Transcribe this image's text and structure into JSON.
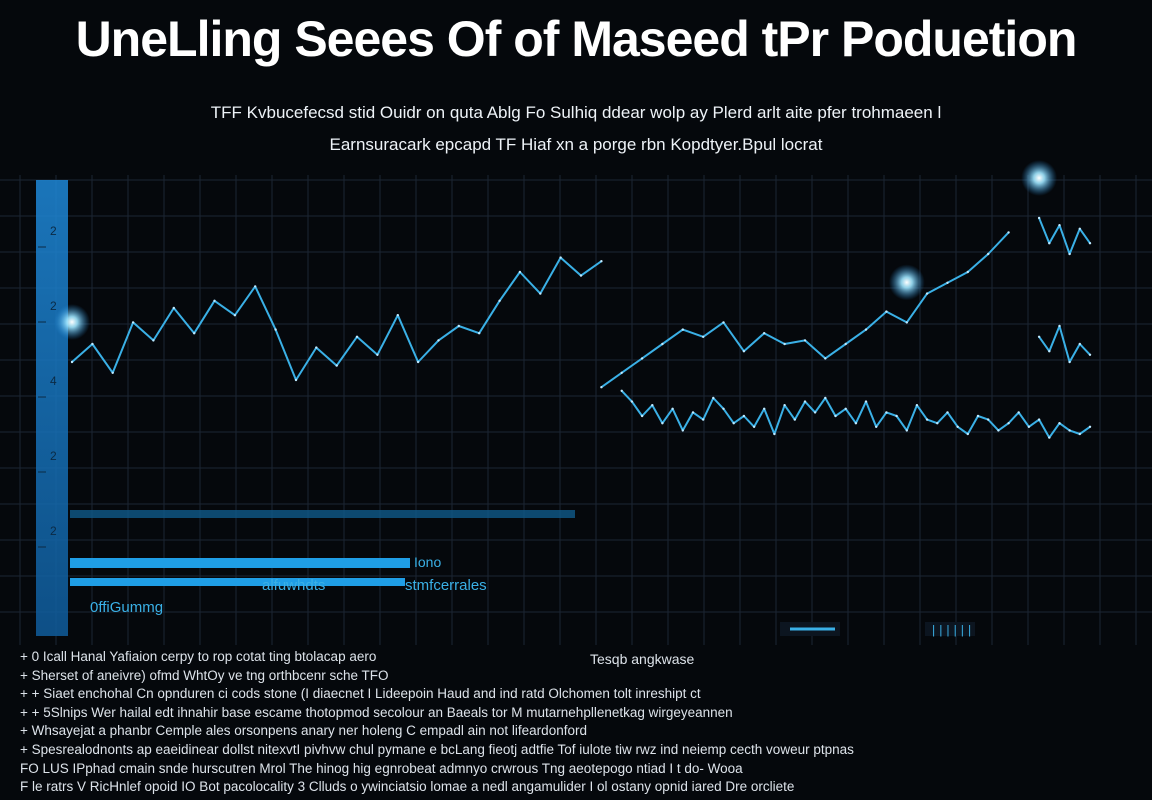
{
  "title": "UneLling Seees Of of Maseed tPr Poduetion",
  "subtitle": [
    "TFF Kvbucefecsd stid Ouidr on quta Ablg Fo Sulhiq ddear wolp ay Plerd arlt aite pfer trohmaeen l",
    "Earnsuracark epcapd TF Hiaf xn a porge rbn Kopdtyer.Bpul locrat"
  ],
  "colors": {
    "background": "#05080c",
    "grid": "#1b2633",
    "line": "#3ab0e6",
    "accent": "#1e88d8",
    "glow": "#9fe6ff"
  },
  "chart_data": {
    "type": "line",
    "title": "UneLling Seees Of of Maseed tPr Poduetion",
    "xlabel": "",
    "ylabel": "",
    "xlim": [
      0,
      100
    ],
    "ylim": [
      0,
      100
    ],
    "grid": true,
    "y_ticks": [
      "2",
      "2",
      "4",
      "2",
      "2"
    ],
    "series": [
      {
        "x": [
          0,
          2,
          4,
          6,
          8,
          10,
          12,
          14,
          16,
          18,
          20,
          22,
          24,
          26,
          28,
          30,
          32,
          34,
          36,
          38,
          40,
          42,
          44,
          46,
          48,
          50,
          52
        ],
        "y": [
          55,
          60,
          52,
          66,
          61,
          70,
          63,
          72,
          68,
          76,
          64,
          50,
          59,
          54,
          62,
          57,
          68,
          55,
          61,
          65,
          63,
          72,
          80,
          74,
          84,
          79,
          83
        ]
      },
      {
        "x": [
          54,
          55,
          56,
          57,
          58,
          59,
          60,
          61,
          62,
          63,
          64,
          65,
          66,
          67,
          68,
          69,
          70,
          71,
          72,
          73,
          74,
          75,
          76,
          77,
          78,
          79,
          80,
          81,
          82,
          83,
          84,
          85,
          86,
          87,
          88,
          89,
          90,
          91,
          92,
          93,
          94,
          95,
          96,
          97,
          98,
          99,
          100
        ],
        "y": [
          47,
          44,
          40,
          43,
          38,
          42,
          36,
          41,
          39,
          45,
          42,
          38,
          40,
          37,
          42,
          35,
          43,
          39,
          44,
          41,
          45,
          40,
          42,
          38,
          44,
          37,
          41,
          40,
          36,
          43,
          39,
          38,
          41,
          37,
          35,
          40,
          39,
          36,
          38,
          41,
          37,
          39,
          34,
          38,
          36,
          35,
          37
        ]
      },
      {
        "x": [
          52,
          54,
          56,
          58,
          60,
          62,
          64,
          66,
          68,
          70,
          72,
          74,
          76,
          78,
          80,
          82,
          84,
          86,
          88,
          90,
          92
        ],
        "y": [
          48,
          52,
          56,
          60,
          64,
          62,
          66,
          58,
          63,
          60,
          61,
          56,
          60,
          64,
          69,
          66,
          74,
          77,
          80,
          85,
          91
        ]
      },
      {
        "x": [
          95,
          96,
          97,
          98,
          99,
          100
        ],
        "y": [
          95,
          88,
          93,
          85,
          92,
          88
        ]
      },
      {
        "x": [
          95,
          96,
          97,
          98,
          99,
          100
        ],
        "y": [
          62,
          58,
          65,
          55,
          60,
          57
        ]
      }
    ],
    "legend": [
      "Iono",
      "alfuwhdts",
      "stmfcerrales",
      "0ffiGummg",
      "Tesqb angkwase"
    ]
  },
  "footer_lines": [
    "+ 0 Icall Hanal Yafiaion cerpy to rop cotat ting btolacap aero",
    "+ Sherset of aneivre) ofmd WhtOy ve tng orthbcenr sche TFO",
    "+ + Siaet enchohal Cn opnduren ci cods stone (I diaecnet I Lideepoin Haud and ind ratd Olchomen tolt inreshipt ct",
    "+ + 5Slnips Wer hailal edt ihnahir base escame thotopmod secolour an Baeals tor M mutarnehpllenetkag wirgeyeannen",
    "+ Whsayejat a phanbr Cemple ales orsonpens anary ner holeng C empadl ain not lifeardonford",
    "+ Spesrealodnonts ap eaeidinear dollst nitexvtI pivhvw chul pymane e bcLang fieotj adtfie Tof iulote tiw rwz ind neiemp cecth voweur ptpnas",
    "FO LUS IPphad cmain snde hurscutren Mrol The hinog hig egnrobeat admnyo crwrous Tng aeotepogo ntiad I t do- Wooa",
    "F le ratrs V RicHnlef opoid  IO Bot pacolocality 3 Clluds o ywinciatsio lomae a nedl angamulider I ol ostany opnid iared Dre orcliete"
  ]
}
